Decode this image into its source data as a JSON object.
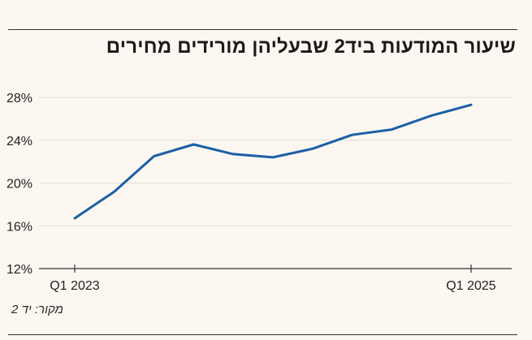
{
  "chart_data": {
    "type": "line",
    "title": "שיעור המודעות ביד2 שבעליהן מורידים מחירים",
    "xlabel": "",
    "ylabel": "",
    "x": [
      0,
      1,
      2,
      3,
      4,
      5,
      6,
      7,
      8,
      9,
      10
    ],
    "x_tick_labels": [
      "Q1 2023",
      "Q1 2025"
    ],
    "x_tick_positions": [
      0,
      10
    ],
    "series": [
      {
        "name": "",
        "values": [
          16.7,
          19.2,
          22.5,
          23.6,
          22.7,
          22.4,
          23.2,
          24.5,
          25.0,
          26.3,
          27.3
        ],
        "color": "#1b5fa6"
      }
    ],
    "ylim": [
      12,
      28
    ],
    "y_ticks": [
      12,
      16,
      20,
      24,
      28
    ],
    "y_tick_labels": [
      "12%",
      "16%",
      "20%",
      "24%",
      "28%"
    ],
    "grid": true,
    "source": "מקור: יד 2"
  },
  "colors": {
    "background": "#fcf7f1",
    "line": "#1b5fa6",
    "grid": "#e3ddd7",
    "axis": "#333333"
  }
}
